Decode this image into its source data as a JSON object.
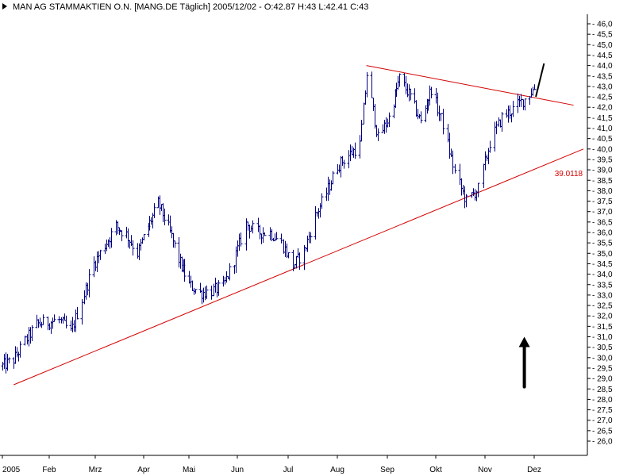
{
  "header": {
    "title": "MAN AG STAMMAKTIEN O.N. [MANG.DE  Täglich] 2005/12/02 - O:42.87 H:43 L:42.41 C:43",
    "marker_icon": "triangle-right-icon"
  },
  "chart_data": {
    "type": "ohlc",
    "title": "MAN AG STAMMAKTIEN O.N. [MANG.DE  Täglich] 2005/12/02 - O:42.87 H:43 L:42.41 C:43",
    "xlabel": "",
    "ylabel": "",
    "ylim": [
      25.5,
      46.5
    ],
    "y_ticks": [
      26.0,
      26.5,
      27.0,
      27.5,
      28.0,
      28.5,
      29.0,
      29.5,
      30.0,
      30.5,
      31.0,
      31.5,
      32.0,
      32.5,
      33.0,
      33.5,
      34.0,
      34.5,
      35.0,
      35.5,
      36.0,
      36.5,
      37.0,
      37.5,
      38.0,
      38.5,
      39.0,
      39.5,
      40.0,
      40.5,
      41.0,
      41.5,
      42.0,
      42.5,
      43.0,
      43.5,
      44.0,
      44.5,
      45.0,
      45.5,
      46.0
    ],
    "y_tick_format": "comma1",
    "y_tick_prefix": "- ",
    "x_start": "2005-01-03",
    "x_end": "2005-12-31",
    "x_ticks": [
      {
        "label": "2005",
        "date": "2005-01-03"
      },
      {
        "label": "Feb",
        "date": "2005-02-01"
      },
      {
        "label": "Mrz",
        "date": "2005-03-01"
      },
      {
        "label": "Apr",
        "date": "2005-04-01"
      },
      {
        "label": "Mai",
        "date": "2005-05-02"
      },
      {
        "label": "Jun",
        "date": "2005-06-01"
      },
      {
        "label": "Jul",
        "date": "2005-07-01"
      },
      {
        "label": "Aug",
        "date": "2005-08-01"
      },
      {
        "label": "Sep",
        "date": "2005-09-01"
      },
      {
        "label": "Okt",
        "date": "2005-10-03"
      },
      {
        "label": "Nov",
        "date": "2005-11-01"
      },
      {
        "label": "Dez",
        "date": "2005-12-01"
      }
    ],
    "grid": false,
    "colors": {
      "bars": "#000080",
      "trendlines": "#d40000",
      "annotation_arrow": "#000000",
      "forecast_line": "#000000",
      "axis": "#000000"
    },
    "series": [
      {
        "type": "ohlc",
        "points": [
          {
            "x": "2005-01-03",
            "y": 29.6
          },
          {
            "x": "2005-01-10",
            "y": 29.9
          },
          {
            "x": "2005-01-17",
            "y": 30.8
          },
          {
            "x": "2005-01-24",
            "y": 31.6
          },
          {
            "x": "2005-01-31",
            "y": 31.7
          },
          {
            "x": "2005-02-07",
            "y": 31.8
          },
          {
            "x": "2005-02-14",
            "y": 31.2
          },
          {
            "x": "2005-02-21",
            "y": 32.8
          },
          {
            "x": "2005-02-28",
            "y": 34.5
          },
          {
            "x": "2005-03-07",
            "y": 35.4
          },
          {
            "x": "2005-03-14",
            "y": 36.3
          },
          {
            "x": "2005-03-21",
            "y": 35.9
          },
          {
            "x": "2005-03-28",
            "y": 35.0
          },
          {
            "x": "2005-04-04",
            "y": 36.3
          },
          {
            "x": "2005-04-11",
            "y": 37.4
          },
          {
            "x": "2005-04-18",
            "y": 36.2
          },
          {
            "x": "2005-04-25",
            "y": 34.7
          },
          {
            "x": "2005-05-02",
            "y": 33.5
          },
          {
            "x": "2005-05-09",
            "y": 33.1
          },
          {
            "x": "2005-05-16",
            "y": 33.2
          },
          {
            "x": "2005-05-23",
            "y": 33.4
          },
          {
            "x": "2005-05-30",
            "y": 34.7
          },
          {
            "x": "2005-06-06",
            "y": 36.4
          },
          {
            "x": "2005-06-13",
            "y": 36.0
          },
          {
            "x": "2005-06-20",
            "y": 36.0
          },
          {
            "x": "2005-06-27",
            "y": 35.5
          },
          {
            "x": "2005-07-04",
            "y": 34.4
          },
          {
            "x": "2005-07-11",
            "y": 35.1
          },
          {
            "x": "2005-07-18",
            "y": 36.8
          },
          {
            "x": "2005-07-25",
            "y": 37.9
          },
          {
            "x": "2005-08-01",
            "y": 39.2
          },
          {
            "x": "2005-08-08",
            "y": 39.7
          },
          {
            "x": "2005-08-15",
            "y": 40.2
          },
          {
            "x": "2005-08-19",
            "y": 43.6
          },
          {
            "x": "2005-08-26",
            "y": 40.5
          },
          {
            "x": "2005-09-02",
            "y": 41.5
          },
          {
            "x": "2005-09-09",
            "y": 43.4
          },
          {
            "x": "2005-09-16",
            "y": 42.5
          },
          {
            "x": "2005-09-23",
            "y": 41.3
          },
          {
            "x": "2005-09-30",
            "y": 42.9
          },
          {
            "x": "2005-10-07",
            "y": 41.2
          },
          {
            "x": "2005-10-14",
            "y": 38.9
          },
          {
            "x": "2005-10-21",
            "y": 37.5
          },
          {
            "x": "2005-10-28",
            "y": 38.1
          },
          {
            "x": "2005-11-04",
            "y": 40.3
          },
          {
            "x": "2005-11-11",
            "y": 41.5
          },
          {
            "x": "2005-11-18",
            "y": 41.9
          },
          {
            "x": "2005-11-25",
            "y": 42.4
          },
          {
            "x": "2005-12-02",
            "y": 43.0
          }
        ]
      },
      {
        "type": "line",
        "points": [
          {
            "x": "2005-01-10",
            "y": 28.7
          },
          {
            "x": "2005-12-31",
            "y": 40.0
          }
        ]
      },
      {
        "type": "line",
        "points": [
          {
            "x": "2005-08-19",
            "y": 44.0
          },
          {
            "x": "2005-12-25",
            "y": 42.1
          }
        ]
      },
      {
        "type": "line",
        "points": [
          {
            "x": "2005-12-02",
            "y": 42.5
          },
          {
            "x": "2005-12-07",
            "y": 44.1
          }
        ]
      }
    ],
    "annotations": [
      {
        "text": "39.0118",
        "x": "2005-12-22",
        "y": 38.7,
        "color": "#d40000"
      },
      {
        "text": "",
        "type": "arrow-up",
        "x": "2005-11-25",
        "y_from": 28.6,
        "y_to": 31.0,
        "color": "#000000"
      }
    ]
  }
}
